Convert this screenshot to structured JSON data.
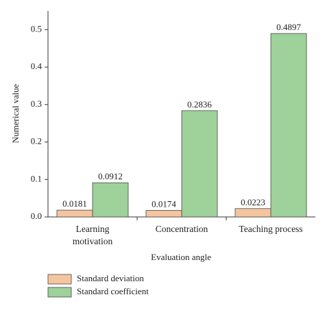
{
  "chart_data": {
    "type": "bar",
    "x_label": "Evaluation angle",
    "y_label": "Numerical value",
    "categories": [
      "Learning motivation",
      "Concentration",
      "Teaching process"
    ],
    "series": [
      {
        "name": "Standard deviation",
        "color": "#f5c59f",
        "values": [
          0.0181,
          0.0174,
          0.0223
        ]
      },
      {
        "name": "Standard coefficient",
        "color": "#9fd19b",
        "values": [
          0.0912,
          0.2836,
          0.4897
        ]
      }
    ],
    "ylim": [
      0,
      0.55
    ],
    "yticks": [
      {
        "value": 0,
        "label": "0.0"
      },
      0.1,
      0.2,
      0.3,
      0.4,
      0.5
    ],
    "grid": false,
    "legend": "bottom-left"
  }
}
